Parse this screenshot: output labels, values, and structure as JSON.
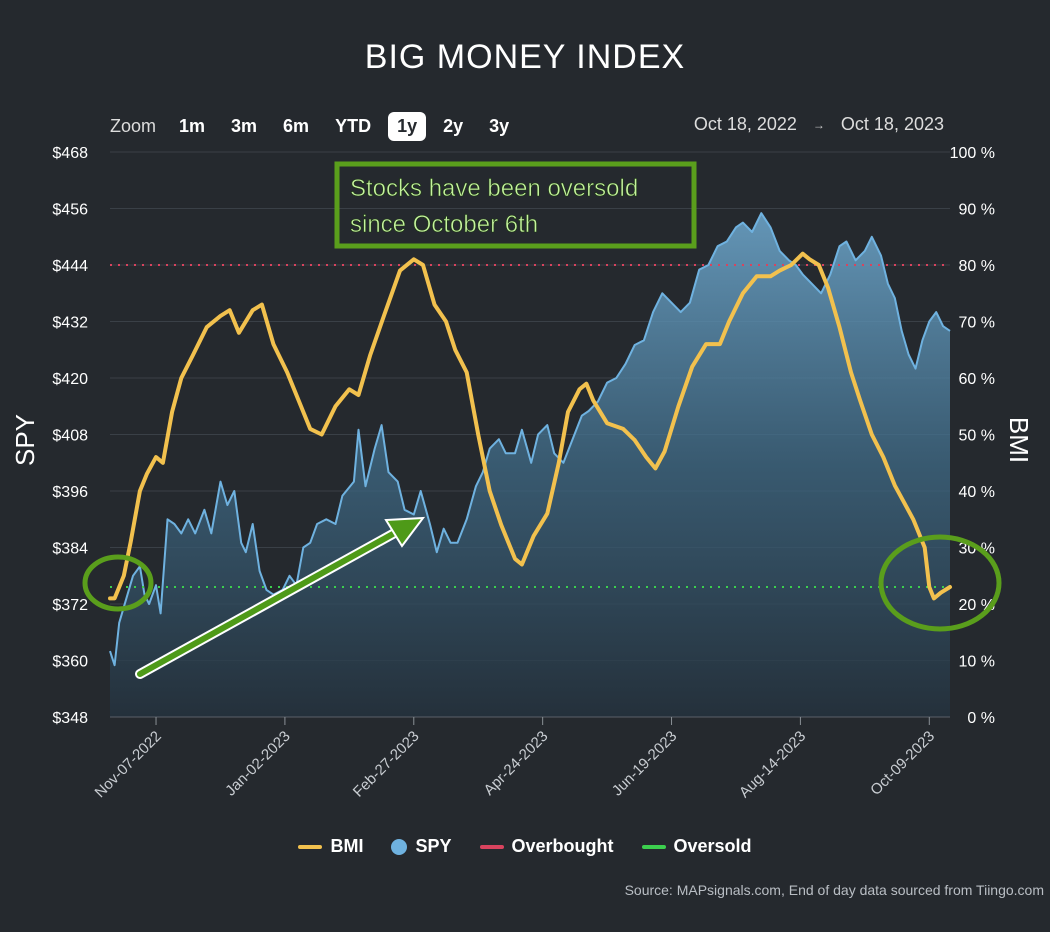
{
  "title": "BIG MONEY INDEX",
  "zoom": {
    "label": "Zoom",
    "options": [
      "1m",
      "3m",
      "6m",
      "YTD",
      "1y",
      "2y",
      "3y"
    ],
    "active": "1y"
  },
  "range": {
    "from": "Oct 18, 2022",
    "arrow": "→",
    "to": "Oct 18, 2023"
  },
  "legend": [
    {
      "name": "BMI",
      "color": "#f2c14e",
      "kind": "line"
    },
    {
      "name": "SPY",
      "color": "#6fb2e0",
      "kind": "dot"
    },
    {
      "name": "Overbought",
      "color": "#d9435e",
      "kind": "line"
    },
    {
      "name": "Oversold",
      "color": "#3ccf4e",
      "kind": "line"
    }
  ],
  "source": "Source: MAPsignals.com, End of day data sourced from Tiingo.com",
  "annotation": {
    "line1": "Stocks have been oversold",
    "line2": "since October 6th"
  },
  "chart_data": {
    "type": "line",
    "title": "BIG MONEY INDEX",
    "ylabel_left": "SPY",
    "ylabel_right": "BMI",
    "ylim_left": [
      348,
      468
    ],
    "ylim_right": [
      0,
      100
    ],
    "yticks_left": [
      "$468",
      "$456",
      "$444",
      "$432",
      "$420",
      "$408",
      "$396",
      "$384",
      "$372",
      "$360",
      "$348"
    ],
    "yticks_right": [
      "100 %",
      "90 %",
      "80 %",
      "70 %",
      "60 %",
      "50 %",
      "40 %",
      "30 %",
      "20 %",
      "10 %",
      "0 %"
    ],
    "xlim": [
      "2022-10-18",
      "2023-10-18"
    ],
    "xticks": [
      "Nov-07-2022",
      "Jan-02-2023",
      "Feb-27-2023",
      "Apr-24-2023",
      "Jun-19-2023",
      "Aug-14-2023",
      "Oct-09-2023"
    ],
    "overbought": 80,
    "oversold": 23,
    "series": [
      {
        "name": "BMI",
        "axis": "right",
        "color": "#f2c14e",
        "points": [
          [
            "2022-10-18",
            21
          ],
          [
            "2022-10-20",
            21
          ],
          [
            "2022-10-24",
            25
          ],
          [
            "2022-10-27",
            31
          ],
          [
            "2022-10-31",
            40
          ],
          [
            "2022-11-03",
            43
          ],
          [
            "2022-11-07",
            46
          ],
          [
            "2022-11-10",
            45
          ],
          [
            "2022-11-14",
            54
          ],
          [
            "2022-11-18",
            60
          ],
          [
            "2022-11-23",
            64
          ],
          [
            "2022-11-29",
            69
          ],
          [
            "2022-12-05",
            71
          ],
          [
            "2022-12-09",
            72
          ],
          [
            "2022-12-13",
            68
          ],
          [
            "2022-12-19",
            72
          ],
          [
            "2022-12-23",
            73
          ],
          [
            "2022-12-28",
            66
          ],
          [
            "2023-01-03",
            61
          ],
          [
            "2023-01-09",
            55
          ],
          [
            "2023-01-13",
            51
          ],
          [
            "2023-01-18",
            50
          ],
          [
            "2023-01-24",
            55
          ],
          [
            "2023-01-30",
            58
          ],
          [
            "2023-02-03",
            57
          ],
          [
            "2023-02-08",
            64
          ],
          [
            "2023-02-14",
            71
          ],
          [
            "2023-02-21",
            79
          ],
          [
            "2023-02-27",
            81
          ],
          [
            "2023-03-03",
            80
          ],
          [
            "2023-03-08",
            73
          ],
          [
            "2023-03-13",
            70
          ],
          [
            "2023-03-17",
            65
          ],
          [
            "2023-03-22",
            61
          ],
          [
            "2023-03-27",
            50
          ],
          [
            "2023-04-01",
            40
          ],
          [
            "2023-04-06",
            34
          ],
          [
            "2023-04-12",
            28
          ],
          [
            "2023-04-15",
            27
          ],
          [
            "2023-04-20",
            32
          ],
          [
            "2023-04-26",
            36
          ],
          [
            "2023-05-01",
            45
          ],
          [
            "2023-05-05",
            54
          ],
          [
            "2023-05-10",
            58
          ],
          [
            "2023-05-13",
            59
          ],
          [
            "2023-05-16",
            56
          ],
          [
            "2023-05-22",
            52
          ],
          [
            "2023-05-29",
            51
          ],
          [
            "2023-06-03",
            49
          ],
          [
            "2023-06-08",
            46
          ],
          [
            "2023-06-12",
            44
          ],
          [
            "2023-06-16",
            47
          ],
          [
            "2023-06-22",
            55
          ],
          [
            "2023-06-28",
            62
          ],
          [
            "2023-07-04",
            66
          ],
          [
            "2023-07-10",
            66
          ],
          [
            "2023-07-14",
            70
          ],
          [
            "2023-07-20",
            75
          ],
          [
            "2023-07-26",
            78
          ],
          [
            "2023-08-01",
            78
          ],
          [
            "2023-08-05",
            79
          ],
          [
            "2023-08-10",
            80
          ],
          [
            "2023-08-15",
            82
          ],
          [
            "2023-08-18",
            81
          ],
          [
            "2023-08-22",
            80
          ],
          [
            "2023-08-26",
            76
          ],
          [
            "2023-08-31",
            69
          ],
          [
            "2023-09-05",
            61
          ],
          [
            "2023-09-09",
            56
          ],
          [
            "2023-09-14",
            50
          ],
          [
            "2023-09-19",
            46
          ],
          [
            "2023-09-24",
            41
          ],
          [
            "2023-09-28",
            38
          ],
          [
            "2023-10-02",
            35
          ],
          [
            "2023-10-04",
            33
          ],
          [
            "2023-10-07",
            30
          ],
          [
            "2023-10-09",
            23
          ],
          [
            "2023-10-11",
            21
          ],
          [
            "2023-10-14",
            22
          ],
          [
            "2023-10-18",
            23
          ]
        ]
      },
      {
        "name": "SPY",
        "axis": "left",
        "color": "#6fb2e0",
        "points": [
          [
            "2022-10-18",
            362
          ],
          [
            "2022-10-20",
            359
          ],
          [
            "2022-10-22",
            368
          ],
          [
            "2022-10-25",
            373
          ],
          [
            "2022-10-28",
            378
          ],
          [
            "2022-10-31",
            380
          ],
          [
            "2022-11-02",
            374
          ],
          [
            "2022-11-04",
            372
          ],
          [
            "2022-11-07",
            376
          ],
          [
            "2022-11-09",
            370
          ],
          [
            "2022-11-12",
            390
          ],
          [
            "2022-11-15",
            389
          ],
          [
            "2022-11-18",
            387
          ],
          [
            "2022-11-21",
            390
          ],
          [
            "2022-11-24",
            387
          ],
          [
            "2022-11-28",
            392
          ],
          [
            "2022-12-01",
            387
          ],
          [
            "2022-12-05",
            398
          ],
          [
            "2022-12-08",
            393
          ],
          [
            "2022-12-11",
            396
          ],
          [
            "2022-12-14",
            385
          ],
          [
            "2022-12-16",
            383
          ],
          [
            "2022-12-19",
            389
          ],
          [
            "2022-12-22",
            379
          ],
          [
            "2022-12-25",
            375
          ],
          [
            "2022-12-28",
            374
          ],
          [
            "2023-01-01",
            375
          ],
          [
            "2023-01-04",
            378
          ],
          [
            "2023-01-07",
            376
          ],
          [
            "2023-01-10",
            384
          ],
          [
            "2023-01-13",
            385
          ],
          [
            "2023-01-16",
            389
          ],
          [
            "2023-01-20",
            390
          ],
          [
            "2023-01-24",
            389
          ],
          [
            "2023-01-27",
            395
          ],
          [
            "2023-02-01",
            398
          ],
          [
            "2023-02-03",
            409
          ],
          [
            "2023-02-06",
            397
          ],
          [
            "2023-02-10",
            405
          ],
          [
            "2023-02-13",
            410
          ],
          [
            "2023-02-16",
            400
          ],
          [
            "2023-02-20",
            398
          ],
          [
            "2023-02-23",
            392
          ],
          [
            "2023-02-27",
            391
          ],
          [
            "2023-03-02",
            396
          ],
          [
            "2023-03-06",
            389
          ],
          [
            "2023-03-09",
            383
          ],
          [
            "2023-03-12",
            388
          ],
          [
            "2023-03-15",
            385
          ],
          [
            "2023-03-18",
            385
          ],
          [
            "2023-03-22",
            390
          ],
          [
            "2023-03-26",
            397
          ],
          [
            "2023-03-29",
            400
          ],
          [
            "2023-04-01",
            405
          ],
          [
            "2023-04-05",
            407
          ],
          [
            "2023-04-08",
            404
          ],
          [
            "2023-04-12",
            404
          ],
          [
            "2023-04-15",
            409
          ],
          [
            "2023-04-19",
            402
          ],
          [
            "2023-04-22",
            408
          ],
          [
            "2023-04-26",
            410
          ],
          [
            "2023-04-29",
            404
          ],
          [
            "2023-05-03",
            402
          ],
          [
            "2023-05-07",
            407
          ],
          [
            "2023-05-11",
            412
          ],
          [
            "2023-05-14",
            413
          ],
          [
            "2023-05-18",
            415
          ],
          [
            "2023-05-22",
            419
          ],
          [
            "2023-05-26",
            420
          ],
          [
            "2023-05-30",
            423
          ],
          [
            "2023-06-03",
            427
          ],
          [
            "2023-06-07",
            428
          ],
          [
            "2023-06-11",
            434
          ],
          [
            "2023-06-15",
            438
          ],
          [
            "2023-06-19",
            436
          ],
          [
            "2023-06-23",
            434
          ],
          [
            "2023-06-27",
            436
          ],
          [
            "2023-07-01",
            443
          ],
          [
            "2023-07-05",
            444
          ],
          [
            "2023-07-09",
            448
          ],
          [
            "2023-07-13",
            449
          ],
          [
            "2023-07-17",
            452
          ],
          [
            "2023-07-20",
            453
          ],
          [
            "2023-07-24",
            451
          ],
          [
            "2023-07-28",
            455
          ],
          [
            "2023-08-01",
            452
          ],
          [
            "2023-08-05",
            447
          ],
          [
            "2023-08-09",
            445
          ],
          [
            "2023-08-12",
            444
          ],
          [
            "2023-08-15",
            442
          ],
          [
            "2023-08-19",
            440
          ],
          [
            "2023-08-23",
            438
          ],
          [
            "2023-08-27",
            442
          ],
          [
            "2023-08-31",
            448
          ],
          [
            "2023-09-03",
            449
          ],
          [
            "2023-09-07",
            445
          ],
          [
            "2023-09-11",
            447
          ],
          [
            "2023-09-14",
            450
          ],
          [
            "2023-09-18",
            446
          ],
          [
            "2023-09-21",
            440
          ],
          [
            "2023-09-24",
            437
          ],
          [
            "2023-09-27",
            430
          ],
          [
            "2023-09-30",
            425
          ],
          [
            "2023-10-03",
            422
          ],
          [
            "2023-10-06",
            428
          ],
          [
            "2023-10-09",
            432
          ],
          [
            "2023-10-12",
            434
          ],
          [
            "2023-10-15",
            431
          ],
          [
            "2023-10-18",
            430
          ]
        ]
      }
    ]
  },
  "colors": {
    "background": "#25292e",
    "grid": "#3b4148",
    "annotation_green": "#5a9e1c",
    "annotation_text": "#c6f2a0"
  }
}
